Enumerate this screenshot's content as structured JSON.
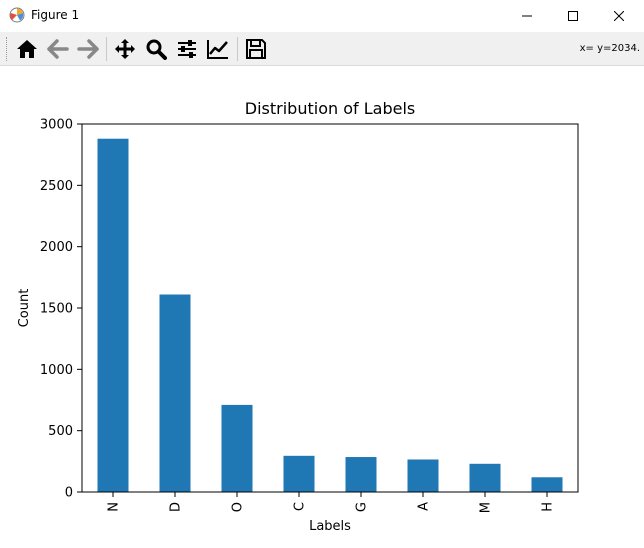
{
  "window": {
    "title": "Figure 1",
    "controls": {
      "minimize": "minimize-icon",
      "maximize": "maximize-icon",
      "close": "close-icon"
    }
  },
  "toolbar": {
    "buttons": [
      {
        "name": "home",
        "icon": "home-icon"
      },
      {
        "name": "back",
        "icon": "arrow-left-icon"
      },
      {
        "name": "forward",
        "icon": "arrow-right-icon"
      },
      {
        "name": "pan",
        "icon": "move-icon"
      },
      {
        "name": "zoom",
        "icon": "magnifier-icon"
      },
      {
        "name": "subplots",
        "icon": "sliders-icon"
      },
      {
        "name": "customize",
        "icon": "line-chart-icon"
      },
      {
        "name": "save",
        "icon": "floppy-disk-icon"
      }
    ],
    "coords": "x= y=2034."
  },
  "chart_data": {
    "type": "bar",
    "title": "Distribution of Labels",
    "xlabel": "Labels",
    "ylabel": "Count",
    "categories": [
      "N",
      "D",
      "O",
      "C",
      "G",
      "A",
      "M",
      "H"
    ],
    "values": [
      2880,
      1610,
      710,
      295,
      285,
      265,
      230,
      120
    ],
    "ylim": [
      0,
      3000
    ],
    "yticks": [
      0,
      500,
      1000,
      1500,
      2000,
      2500,
      3000
    ],
    "bar_color": "#1f77b4",
    "grid": false,
    "legend": "none"
  }
}
